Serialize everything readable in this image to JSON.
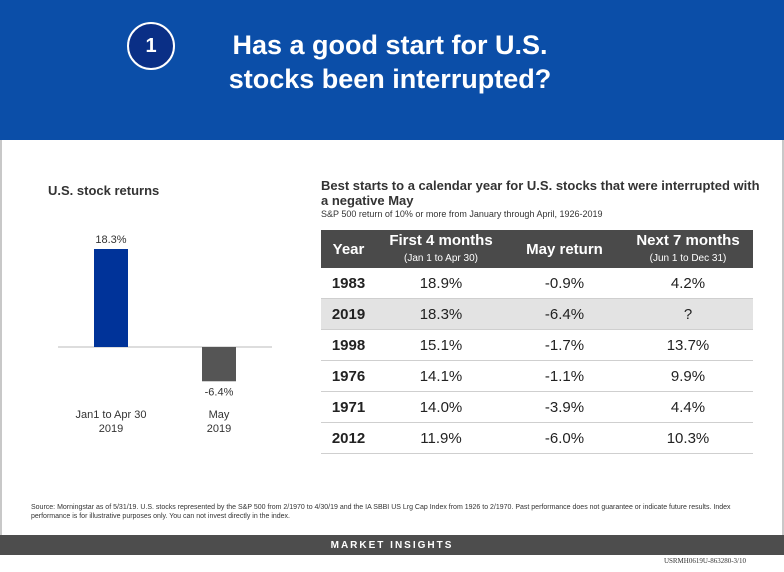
{
  "header": {
    "number": "1",
    "title": "Has a good start for U.S.\nstocks been interrupted?",
    "bg_color": "#0b4ea8"
  },
  "left_chart": {
    "title": "U.S. stock returns"
  },
  "chart_data": {
    "type": "bar",
    "categories": [
      "Jan1 to Apr 30\n2019",
      "May\n2019"
    ],
    "values": [
      18.3,
      -6.4
    ],
    "value_labels": [
      "18.3%",
      "-6.4%"
    ],
    "colors": [
      "#003399",
      "#555555"
    ],
    "title": "U.S. stock returns",
    "xlabel": "",
    "ylabel": ""
  },
  "table": {
    "title": "Best starts to a calendar year for U.S. stocks that were interrupted with a negative May",
    "subtitle": "S&P 500 return of 10% or more from January through April, 1926-2019",
    "headers": {
      "year": "Year",
      "first4": "First 4 months",
      "first4_sub": "(Jan 1 to Apr 30)",
      "may": "May return",
      "next7": "Next 7 months",
      "next7_sub": "(Jun 1 to Dec 31)"
    },
    "rows": [
      {
        "year": "1983",
        "first4": "18.9%",
        "may": "-0.9%",
        "next7": "4.2%"
      },
      {
        "year": "2019",
        "first4": "18.3%",
        "may": "-6.4%",
        "next7": "?"
      },
      {
        "year": "1998",
        "first4": "15.1%",
        "may": "-1.7%",
        "next7": "13.7%"
      },
      {
        "year": "1976",
        "first4": "14.1%",
        "may": "-1.1%",
        "next7": "9.9%"
      },
      {
        "year": "1971",
        "first4": "14.0%",
        "may": "-3.9%",
        "next7": "4.4%"
      },
      {
        "year": "2012",
        "first4": "11.9%",
        "may": "-6.0%",
        "next7": "10.3%"
      }
    ]
  },
  "source": "Source: Morningstar as of 5/31/19. U.S. stocks represented by the S&P 500 from 2/1970 to 4/30/19 and the IA SBBI US Lrg Cap Index from 1926 to 2/1970. Past performance does not guarantee or indicate future results. Index performance is for illustrative purposes only. You can not invest directly in the index.",
  "footer": {
    "label": "MARKET INSIGHTS",
    "code": "USRMH0619U-863280-3/10"
  }
}
